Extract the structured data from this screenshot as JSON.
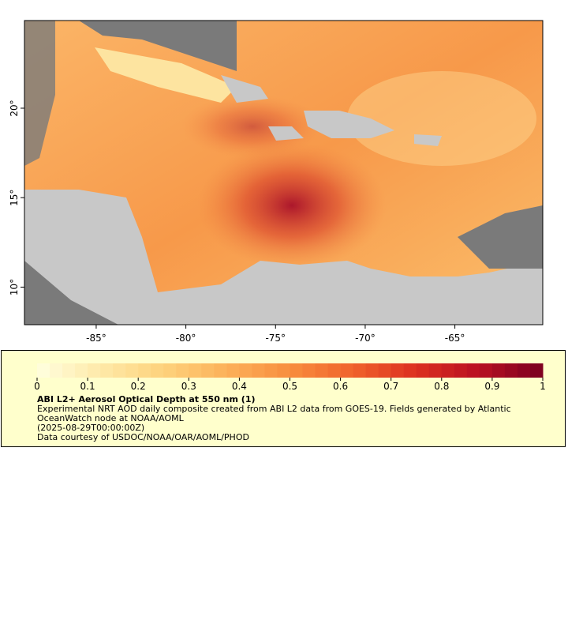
{
  "map": {
    "lon_range": [
      -89,
      -60.1
    ],
    "lat_range": [
      7.9,
      24.9
    ],
    "xticks": [
      {
        "value": -85,
        "label": "-85°"
      },
      {
        "value": -80,
        "label": "-80°"
      },
      {
        "value": -75,
        "label": "-75°"
      },
      {
        "value": -70,
        "label": "-70°"
      },
      {
        "value": -65,
        "label": "-65°"
      }
    ],
    "yticks": [
      {
        "value": 10,
        "label": "10°"
      },
      {
        "value": 15,
        "label": "15°"
      },
      {
        "value": 20,
        "label": "20°"
      }
    ]
  },
  "colorbar": {
    "range": [
      0,
      1
    ],
    "ticks": [
      0,
      0.1,
      0.2,
      0.3,
      0.4,
      0.5,
      0.6,
      0.7,
      0.8,
      0.9,
      1
    ],
    "colors": [
      "#ffffe0",
      "#fee9a8",
      "#fdd27c",
      "#fcb15a",
      "#f88d3e",
      "#f0622c",
      "#dc3020",
      "#b80f22",
      "#7a0020"
    ]
  },
  "legend": {
    "title": "ABI L2+ Aerosol Optical Depth at 550 nm (1)",
    "description": "Experimental NRT AOD daily composite created from ABI L2 data from GOES-19. Fields generated by Atlantic OceanWatch node at NOAA/AOML",
    "time": "(2025-08-29T00:00:00Z)",
    "credit": "Data courtesy of USDOC/NOAA/OAR/AOML/PHOD"
  }
}
